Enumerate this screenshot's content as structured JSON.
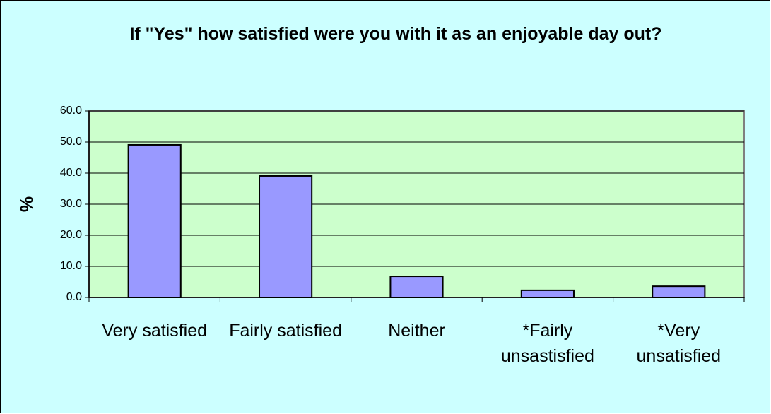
{
  "chart_data": {
    "type": "bar",
    "title": "If \"Yes\" how satisfied were you with it as an enjoyable day out?",
    "y_label": "%",
    "categories": [
      "Very satisfied",
      "Fairly satisfied",
      "Neither",
      "*Fairly unsastisfied",
      "*Very unsatisfied"
    ],
    "values": [
      49.1,
      39.1,
      6.8,
      2.3,
      3.6
    ],
    "color": "#9999ff",
    "ylim": [
      0,
      60
    ],
    "yticks": [
      {
        "value": 0,
        "label": "0.0"
      },
      {
        "value": 10,
        "label": "10.0"
      },
      {
        "value": 20,
        "label": "20.0"
      },
      {
        "value": 30,
        "label": "30.0"
      },
      {
        "value": 40,
        "label": "40.0"
      },
      {
        "value": 50,
        "label": "50.0"
      },
      {
        "value": 60,
        "label": "60.0"
      }
    ],
    "grid": true
  }
}
